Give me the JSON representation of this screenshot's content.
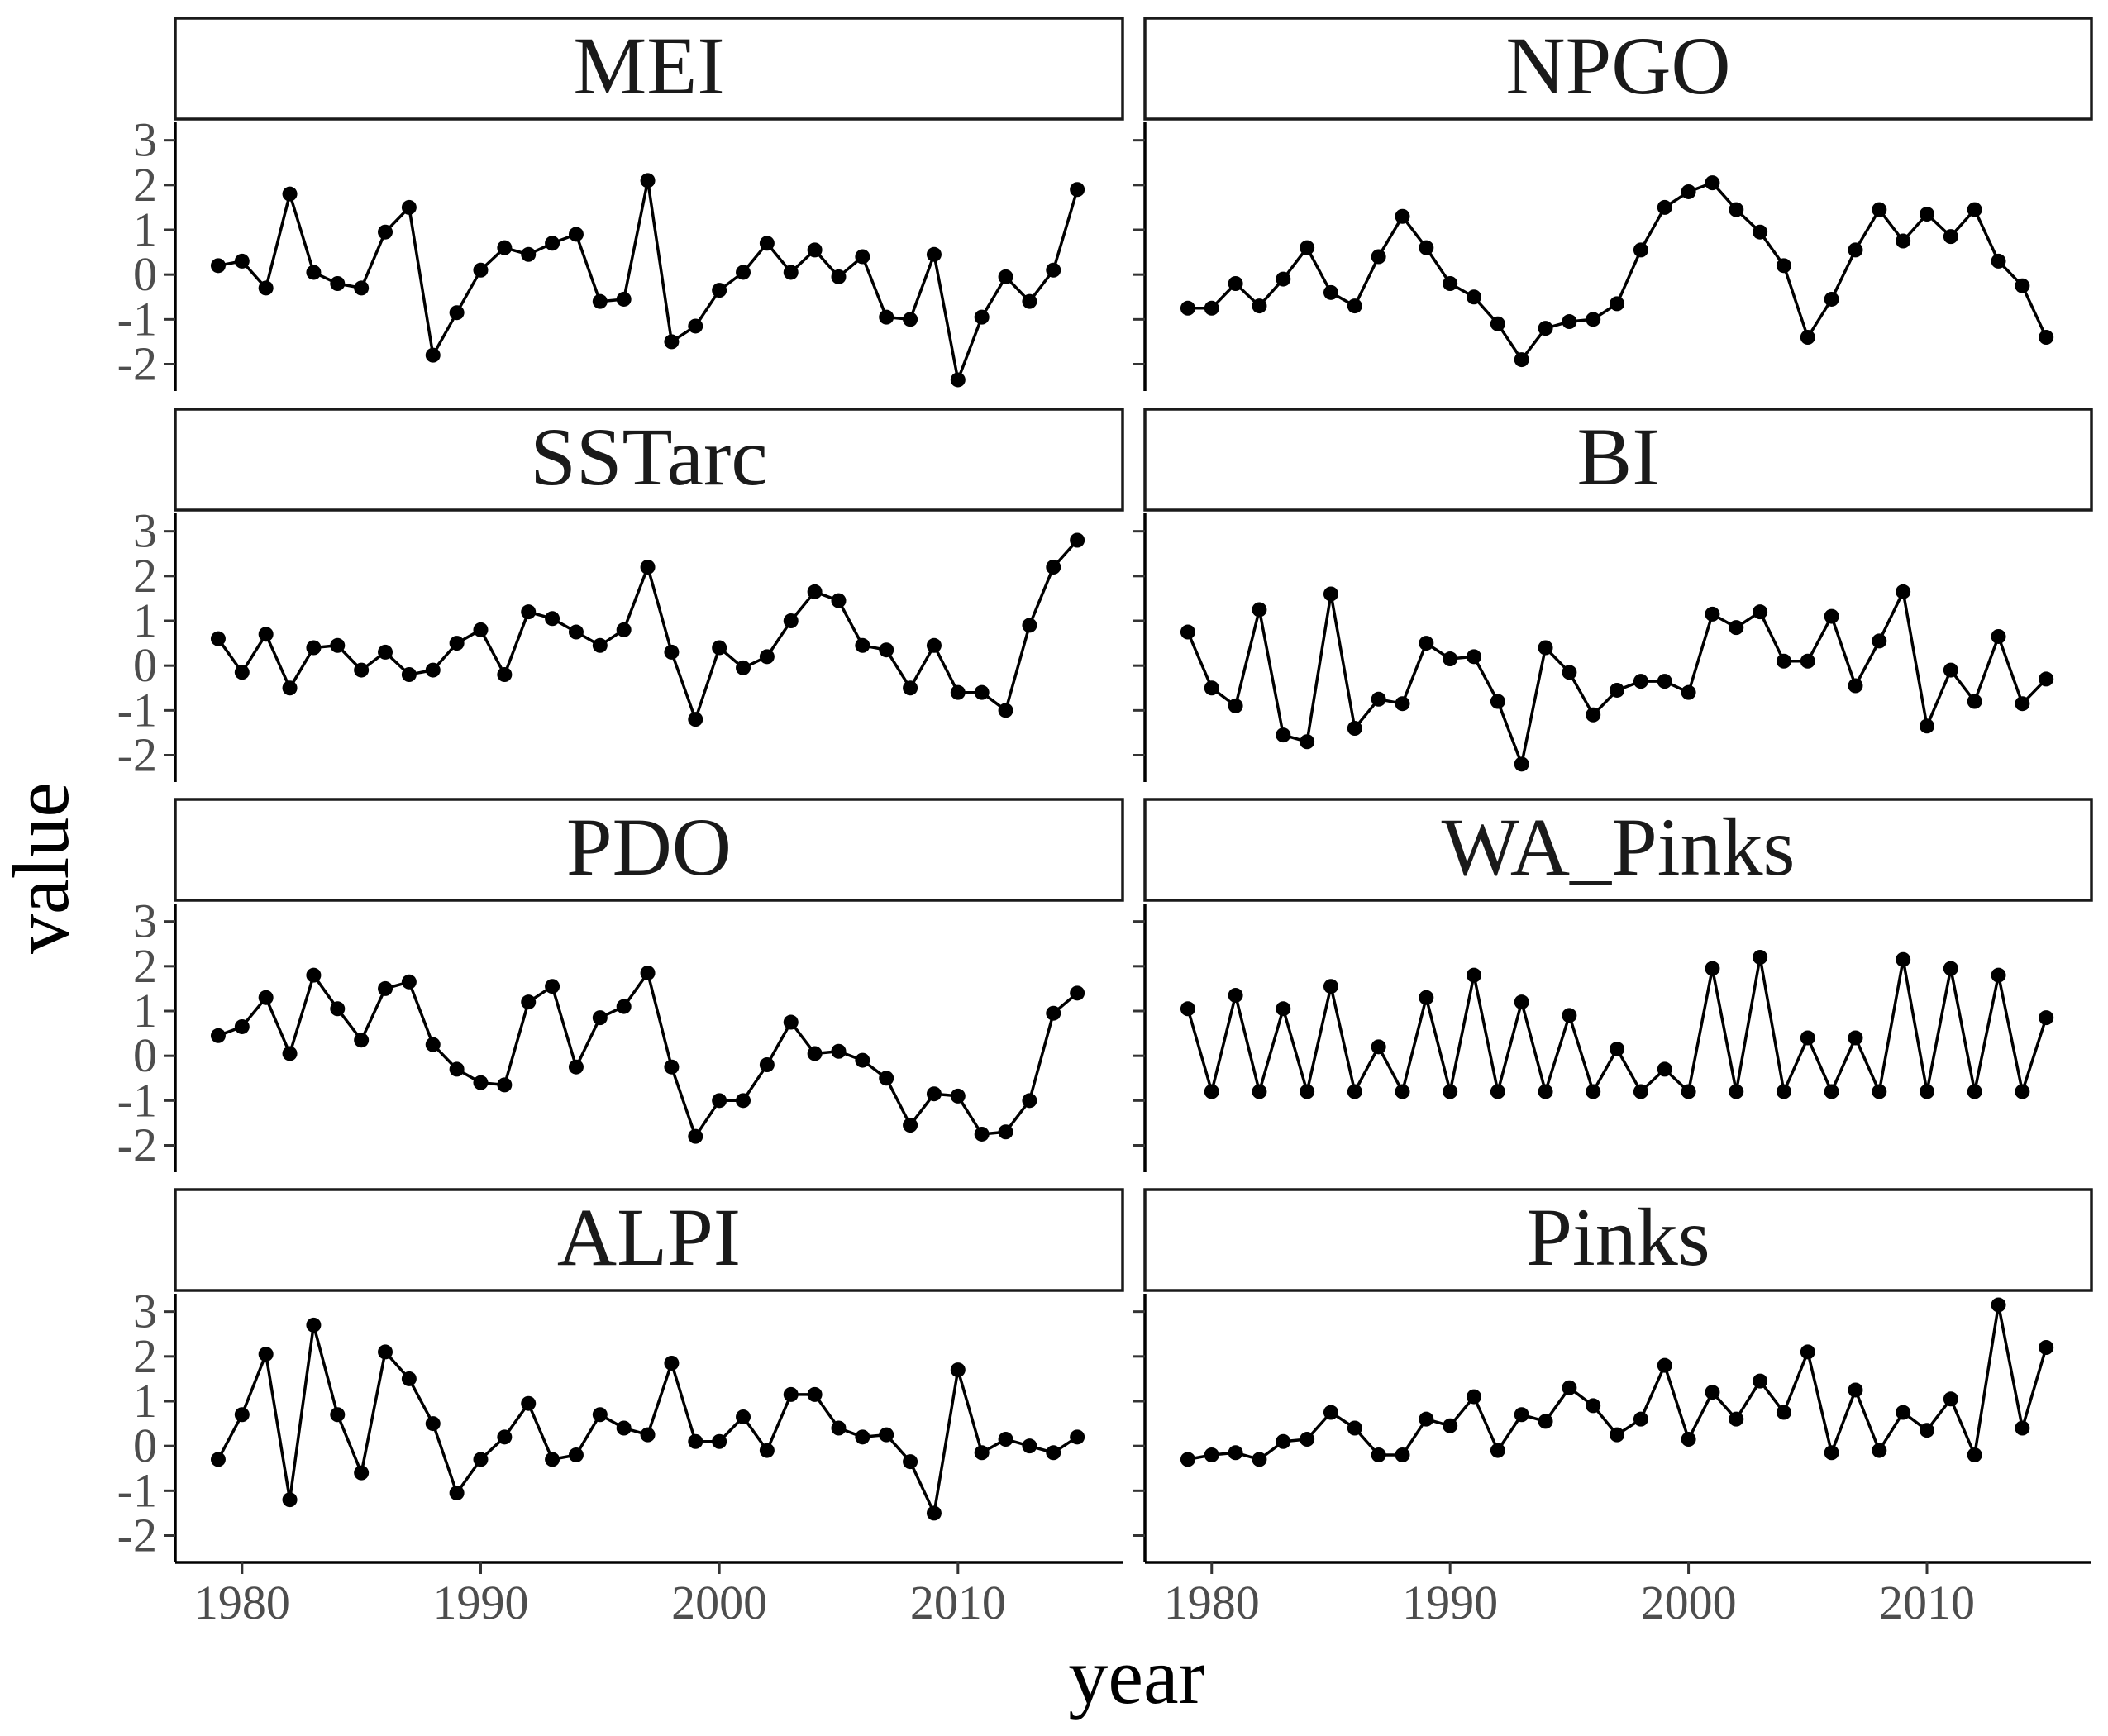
{
  "chart_data": {
    "type": "line",
    "layout": "facet-grid",
    "ncol": 2,
    "xlabel": "year",
    "ylabel": "value",
    "xlim": [
      1977.2,
      2016.9
    ],
    "ylim": [
      -2.6,
      3.4
    ],
    "xticks": [
      1980,
      1990,
      2000,
      2010
    ],
    "yticks": [
      -2,
      -1,
      0,
      1,
      2,
      3
    ],
    "x": [
      1979,
      1980,
      1981,
      1982,
      1983,
      1984,
      1985,
      1986,
      1987,
      1988,
      1989,
      1990,
      1991,
      1992,
      1993,
      1994,
      1995,
      1996,
      1997,
      1998,
      1999,
      2000,
      2001,
      2002,
      2003,
      2004,
      2005,
      2006,
      2007,
      2008,
      2009,
      2010,
      2011,
      2012,
      2013,
      2014,
      2015
    ],
    "series": [
      {
        "name": "MEI",
        "values": [
          0.2,
          0.3,
          -0.3,
          1.8,
          0.05,
          -0.2,
          -0.3,
          0.95,
          1.5,
          -1.8,
          -0.85,
          0.1,
          0.6,
          0.45,
          0.7,
          0.9,
          -0.6,
          -0.55,
          2.1,
          -1.5,
          -1.15,
          -0.35,
          0.05,
          0.7,
          0.05,
          0.55,
          -0.05,
          0.4,
          -0.95,
          -1.0,
          0.45,
          -2.35,
          -0.95,
          -0.05,
          -0.6,
          0.1,
          1.9
        ]
      },
      {
        "name": "NPGO",
        "values": [
          -0.75,
          -0.75,
          -0.2,
          -0.7,
          -0.1,
          0.6,
          -0.4,
          -0.7,
          0.4,
          1.3,
          0.6,
          -0.2,
          -0.5,
          -1.1,
          -1.9,
          -1.2,
          -1.05,
          -1.0,
          -0.65,
          0.55,
          1.5,
          1.85,
          2.05,
          1.45,
          0.95,
          0.2,
          -1.4,
          -0.55,
          0.55,
          1.45,
          0.75,
          1.35,
          0.85,
          1.45,
          0.3,
          -0.25,
          -1.4
        ]
      },
      {
        "name": "SSTarc",
        "values": [
          0.6,
          -0.15,
          0.7,
          -0.5,
          0.4,
          0.45,
          -0.1,
          0.3,
          -0.2,
          -0.1,
          0.5,
          0.8,
          -0.2,
          1.2,
          1.05,
          0.75,
          0.45,
          0.8,
          2.2,
          0.3,
          -1.2,
          0.4,
          -0.05,
          0.2,
          1.0,
          1.65,
          1.45,
          0.45,
          0.35,
          -0.5,
          0.45,
          -0.6,
          -0.6,
          -1.0,
          0.9,
          2.2,
          2.8
        ]
      },
      {
        "name": "BI",
        "values": [
          0.75,
          -0.5,
          -0.9,
          1.25,
          -1.55,
          -1.7,
          1.6,
          -1.4,
          -0.75,
          -0.85,
          0.5,
          0.15,
          0.2,
          -0.8,
          -2.2,
          0.4,
          -0.15,
          -1.1,
          -0.55,
          -0.35,
          -0.35,
          -0.6,
          1.15,
          0.85,
          1.2,
          0.1,
          0.1,
          1.1,
          -0.45,
          0.55,
          1.65,
          -1.35,
          -0.1,
          -0.8,
          0.65,
          -0.85,
          -0.3
        ]
      },
      {
        "name": "PDO",
        "values": [
          0.45,
          0.65,
          1.3,
          0.05,
          1.8,
          1.05,
          0.35,
          1.5,
          1.65,
          0.25,
          -0.3,
          -0.6,
          -0.65,
          1.2,
          1.55,
          -0.25,
          0.85,
          1.1,
          1.85,
          -0.25,
          -1.8,
          -1.0,
          -1.0,
          -0.2,
          0.75,
          0.05,
          0.1,
          -0.1,
          -0.5,
          -1.55,
          -0.85,
          -0.9,
          -1.75,
          -1.7,
          -1.0,
          0.95,
          1.4
        ]
      },
      {
        "name": "WA_Pinks",
        "values": [
          1.05,
          -0.8,
          1.35,
          -0.8,
          1.05,
          -0.8,
          1.55,
          -0.8,
          0.2,
          -0.8,
          1.3,
          -0.8,
          1.8,
          -0.8,
          1.2,
          -0.8,
          0.9,
          -0.8,
          0.15,
          -0.8,
          -0.3,
          -0.8,
          1.95,
          -0.8,
          2.2,
          -0.8,
          0.4,
          -0.8,
          0.4,
          -0.8,
          2.15,
          -0.8,
          1.95,
          -0.8,
          1.8,
          -0.8,
          0.85
        ]
      },
      {
        "name": "ALPI",
        "values": [
          -0.3,
          0.7,
          2.05,
          -1.2,
          2.7,
          0.7,
          -0.6,
          2.1,
          1.5,
          0.5,
          -1.05,
          -0.3,
          0.2,
          0.95,
          -0.3,
          -0.2,
          0.7,
          0.4,
          0.25,
          1.85,
          0.1,
          0.1,
          0.65,
          -0.1,
          1.15,
          1.15,
          0.4,
          0.2,
          0.25,
          -0.35,
          -1.5,
          1.7,
          -0.15,
          0.15,
          0.0,
          -0.15,
          0.2
        ]
      },
      {
        "name": "Pinks",
        "values": [
          -0.3,
          -0.2,
          -0.15,
          -0.3,
          0.1,
          0.15,
          0.75,
          0.4,
          -0.2,
          -0.2,
          0.6,
          0.45,
          1.1,
          -0.1,
          0.7,
          0.55,
          1.3,
          0.9,
          0.25,
          0.6,
          1.8,
          0.15,
          1.2,
          0.6,
          1.45,
          0.75,
          2.1,
          -0.15,
          1.25,
          -0.1,
          0.75,
          0.35,
          1.05,
          -0.2,
          3.15,
          0.4,
          2.2
        ]
      }
    ]
  }
}
